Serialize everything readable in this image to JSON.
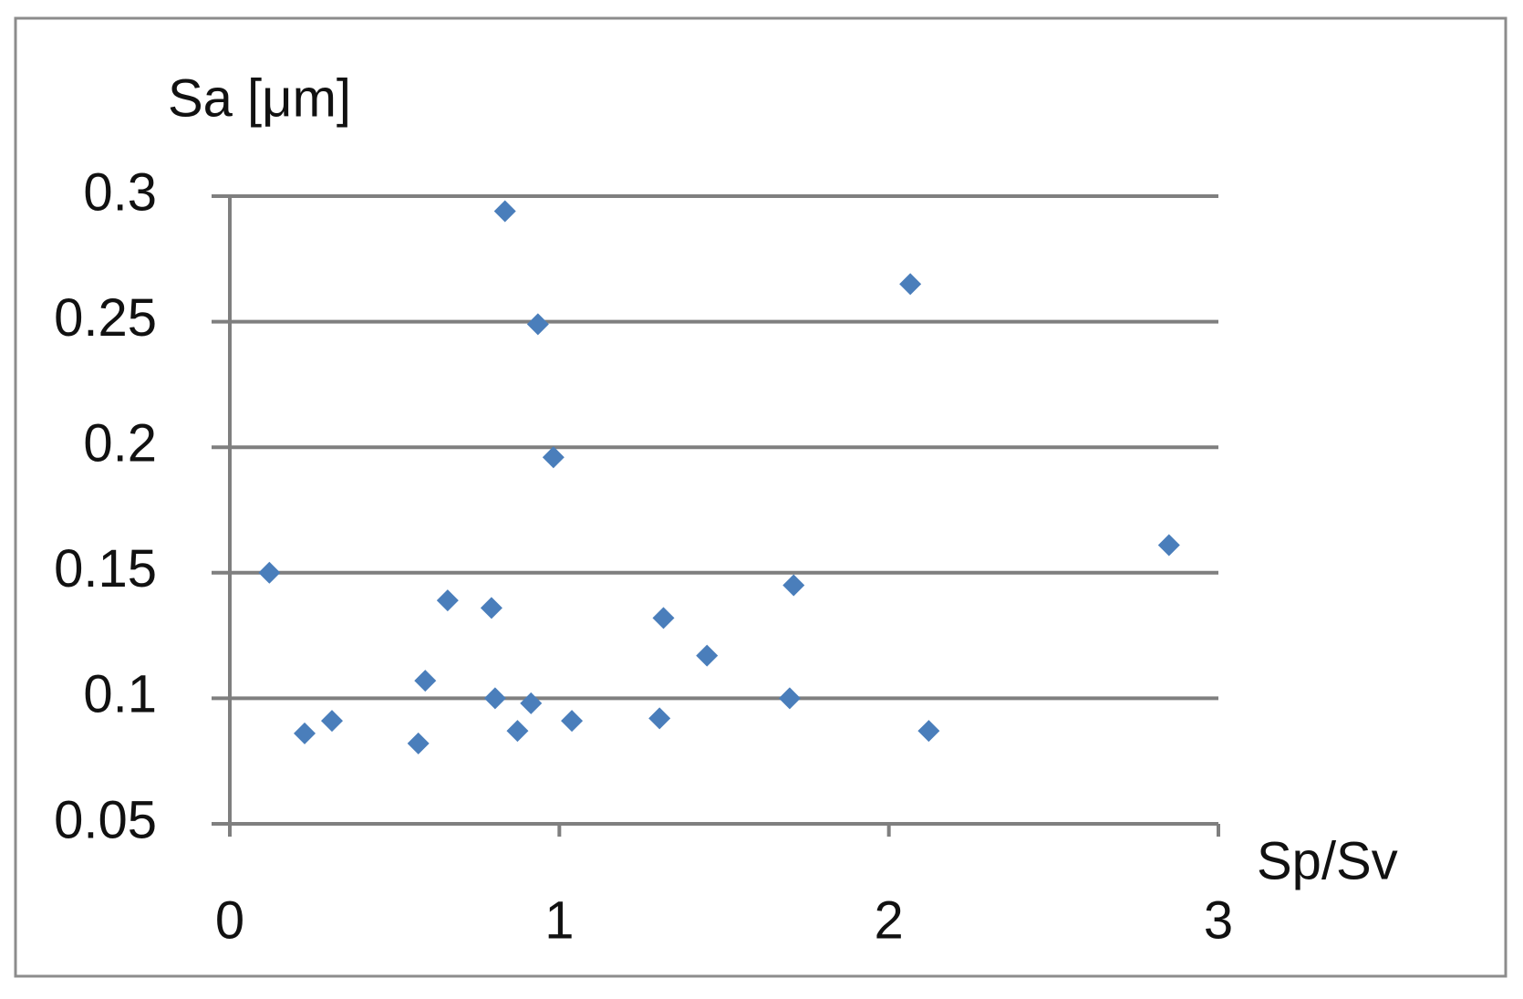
{
  "chart_data": {
    "type": "scatter",
    "x_label": "Sp/Sv",
    "y_label": "Sa [μm]",
    "color": "#4a7ebb",
    "grid": true,
    "xlim": [
      0,
      3
    ],
    "xticks": [
      0,
      1,
      2,
      3
    ],
    "ylim": [
      0.05,
      0.3
    ],
    "yticks": [
      0.05,
      0.1,
      0.15,
      0.2,
      0.25,
      0.3
    ],
    "x": [
      0.12,
      0.227,
      0.31,
      0.572,
      0.593,
      0.661,
      0.794,
      0.805,
      0.835,
      0.873,
      0.914,
      0.935,
      0.982,
      1.038,
      1.304,
      1.316,
      1.448,
      1.699,
      1.711,
      2.065,
      2.121,
      2.85
    ],
    "values": [
      0.15,
      0.086,
      0.091,
      0.082,
      0.107,
      0.139,
      0.136,
      0.1,
      0.294,
      0.087,
      0.098,
      0.249,
      0.196,
      0.091,
      0.092,
      0.132,
      0.117,
      0.1,
      0.145,
      0.265,
      0.087,
      0.161
    ]
  }
}
